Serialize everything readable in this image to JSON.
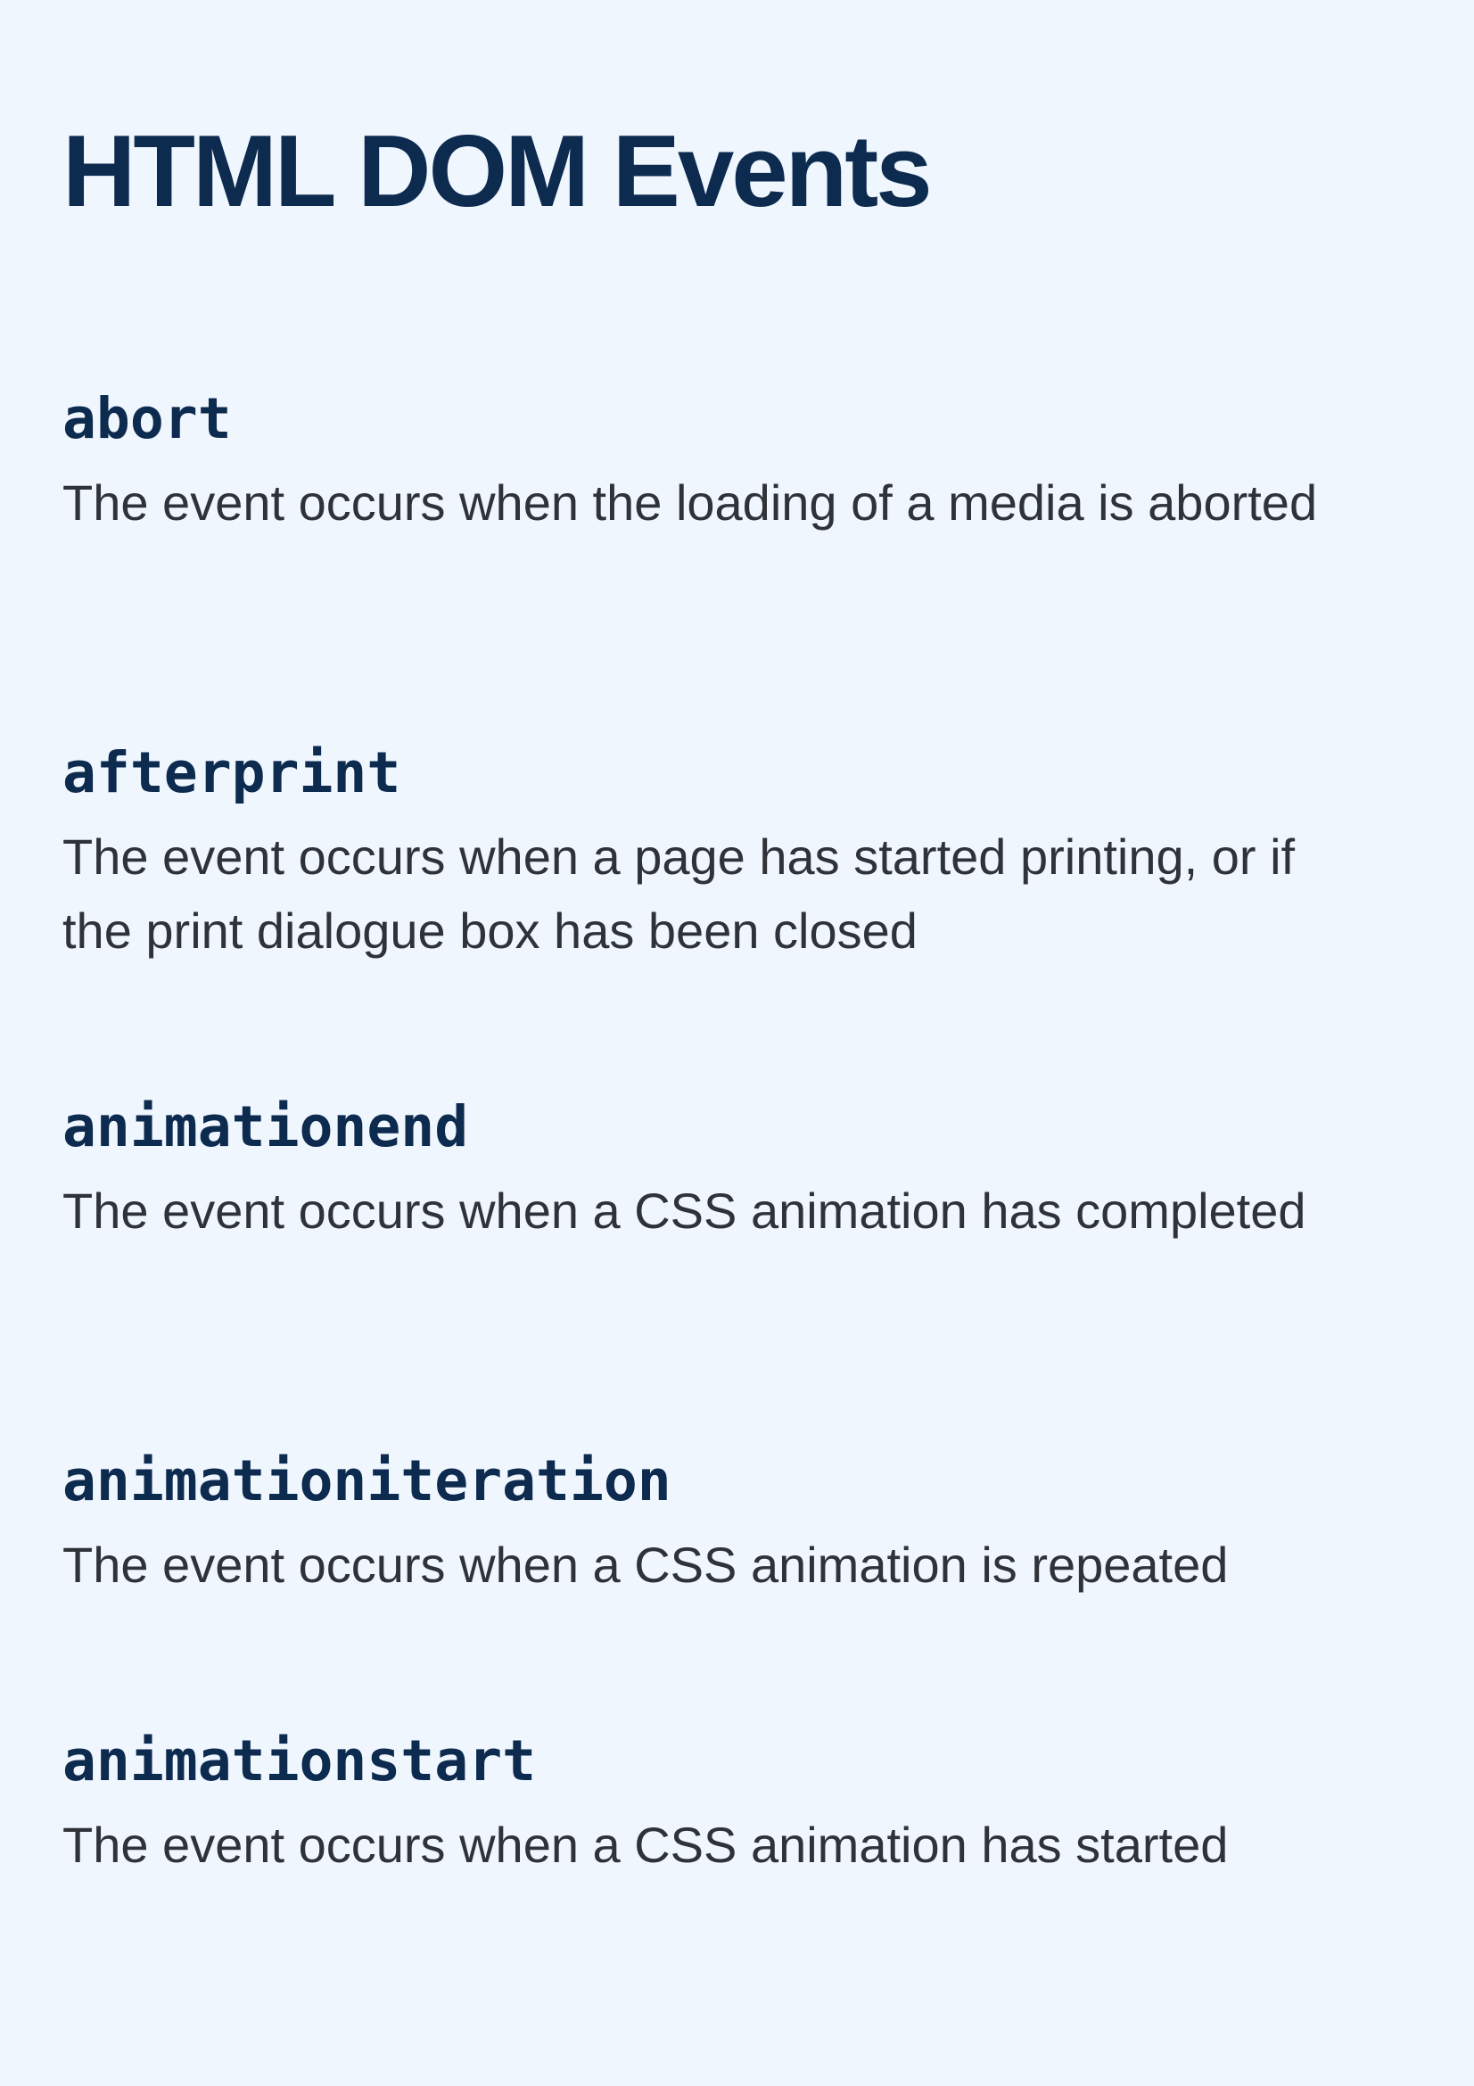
{
  "title": "HTML DOM Events",
  "events": [
    {
      "name": "abort",
      "description": "The event occurs when the loading of a media is aborted"
    },
    {
      "name": "afterprint",
      "description": "The event occurs when a page has started printing, or if the print dialogue box has been closed"
    },
    {
      "name": "animationend",
      "description": "The event occurs when a CSS animation has completed"
    },
    {
      "name": "animationiteration",
      "description": "The event occurs when a CSS animation is repeated"
    },
    {
      "name": "animationstart",
      "description": "The event occurs when a CSS animation has started"
    }
  ]
}
